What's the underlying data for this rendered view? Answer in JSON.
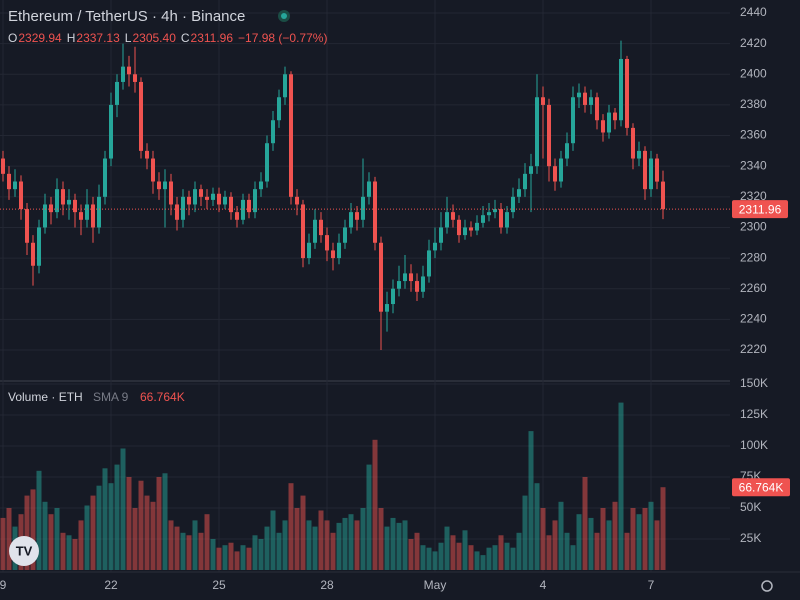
{
  "header": {
    "title": "Ethereum / TetherUS · 4h · Binance",
    "readout": [
      "O",
      "2329.94",
      "H",
      "2337.13",
      "L",
      "2305.40",
      "C",
      "2311.96"
    ],
    "change": "−17.98 (−0.77%)",
    "volume_title": "Volume · ETH",
    "volume_indicator": "SMA 9"
  },
  "chart_data": {
    "type": "candlestick",
    "up_color": "#26a69a",
    "down_color": "#ef5350",
    "categories": [
      "9",
      null,
      null,
      null,
      null,
      null,
      null,
      null,
      null,
      null,
      null,
      null,
      null,
      null,
      null,
      null,
      null,
      null,
      "22",
      null,
      null,
      null,
      null,
      null,
      null,
      null,
      null,
      null,
      null,
      null,
      null,
      null,
      null,
      null,
      null,
      null,
      "25",
      null,
      null,
      null,
      null,
      null,
      null,
      null,
      null,
      null,
      null,
      null,
      null,
      null,
      null,
      null,
      null,
      null,
      "28",
      null,
      null,
      null,
      null,
      null,
      null,
      null,
      null,
      null,
      null,
      null,
      null,
      null,
      null,
      null,
      null,
      null,
      "May",
      null,
      null,
      null,
      null,
      null,
      null,
      null,
      null,
      null,
      null,
      null,
      null,
      null,
      null,
      null,
      null,
      null,
      "4",
      null,
      null,
      null,
      null,
      null,
      null,
      null,
      null,
      null,
      null,
      null,
      null,
      null,
      null,
      null,
      null,
      null,
      "7",
      null,
      null
    ],
    "open": [
      2345,
      2335,
      2325,
      2330,
      2312,
      2290,
      2275,
      2300,
      2315,
      2310,
      2325,
      2315,
      2318,
      2310,
      2305,
      2315,
      2300,
      2320,
      2345,
      2380,
      2395,
      2405,
      2400,
      2395,
      2350,
      2345,
      2330,
      2325,
      2330,
      2315,
      2305,
      2320,
      2315,
      2325,
      2320,
      2318,
      2322,
      2315,
      2320,
      2310,
      2305,
      2318,
      2310,
      2325,
      2330,
      2355,
      2370,
      2385,
      2400,
      2320,
      2315,
      2280,
      2290,
      2305,
      2295,
      2285,
      2280,
      2290,
      2300,
      2310,
      2305,
      2320,
      2330,
      2290,
      2245,
      2250,
      2260,
      2265,
      2270,
      2265,
      2258,
      2268,
      2285,
      2290,
      2300,
      2310,
      2305,
      2295,
      2300,
      2298,
      2303,
      2308,
      2310,
      2312,
      2300,
      2310,
      2320,
      2325,
      2335,
      2340,
      2385,
      2380,
      2340,
      2330,
      2345,
      2355,
      2385,
      2388,
      2380,
      2385,
      2370,
      2362,
      2375,
      2370,
      2410,
      2365,
      2345,
      2350,
      2325,
      2345,
      2329.94
    ],
    "high": [
      2350,
      2340,
      2338,
      2334,
      2316,
      2295,
      2305,
      2322,
      2320,
      2332,
      2330,
      2325,
      2322,
      2315,
      2325,
      2320,
      2328,
      2350,
      2388,
      2400,
      2420,
      2412,
      2418,
      2398,
      2355,
      2350,
      2336,
      2338,
      2335,
      2320,
      2325,
      2324,
      2330,
      2328,
      2325,
      2326,
      2326,
      2324,
      2323,
      2314,
      2322,
      2322,
      2330,
      2336,
      2360,
      2376,
      2390,
      2405,
      2402,
      2325,
      2318,
      2296,
      2312,
      2310,
      2300,
      2290,
      2296,
      2305,
      2316,
      2314,
      2345,
      2336,
      2333,
      2294,
      2258,
      2266,
      2275,
      2282,
      2276,
      2270,
      2275,
      2292,
      2300,
      2310,
      2320,
      2315,
      2308,
      2305,
      2304,
      2308,
      2314,
      2316,
      2318,
      2316,
      2314,
      2326,
      2332,
      2342,
      2348,
      2400,
      2392,
      2384,
      2345,
      2350,
      2362,
      2392,
      2394,
      2392,
      2390,
      2388,
      2374,
      2380,
      2378,
      2422,
      2412,
      2368,
      2356,
      2353,
      2350,
      2348,
      2337.13
    ],
    "low": [
      2330,
      2318,
      2320,
      2305,
      2282,
      2262,
      2270,
      2296,
      2302,
      2306,
      2308,
      2305,
      2300,
      2295,
      2300,
      2290,
      2296,
      2315,
      2340,
      2372,
      2390,
      2392,
      2388,
      2345,
      2338,
      2322,
      2318,
      2300,
      2308,
      2298,
      2300,
      2308,
      2310,
      2314,
      2312,
      2314,
      2310,
      2312,
      2305,
      2300,
      2302,
      2306,
      2306,
      2320,
      2326,
      2350,
      2365,
      2380,
      2315,
      2308,
      2274,
      2276,
      2286,
      2290,
      2278,
      2272,
      2276,
      2286,
      2296,
      2298,
      2300,
      2315,
      2285,
      2220,
      2232,
      2244,
      2255,
      2260,
      2258,
      2252,
      2254,
      2264,
      2280,
      2285,
      2296,
      2300,
      2290,
      2292,
      2294,
      2295,
      2300,
      2304,
      2306,
      2296,
      2296,
      2306,
      2316,
      2320,
      2310,
      2335,
      2345,
      2330,
      2324,
      2326,
      2340,
      2350,
      2378,
      2375,
      2374,
      2364,
      2356,
      2358,
      2364,
      2366,
      2360,
      2338,
      2340,
      2318,
      2320,
      2325,
      2305.4
    ],
    "close": [
      2335,
      2325,
      2330,
      2312,
      2290,
      2275,
      2300,
      2315,
      2310,
      2325,
      2315,
      2318,
      2310,
      2305,
      2315,
      2300,
      2320,
      2345,
      2380,
      2395,
      2405,
      2400,
      2395,
      2350,
      2345,
      2330,
      2325,
      2330,
      2315,
      2305,
      2320,
      2315,
      2325,
      2320,
      2318,
      2322,
      2315,
      2320,
      2310,
      2305,
      2318,
      2310,
      2325,
      2330,
      2355,
      2370,
      2385,
      2400,
      2320,
      2315,
      2280,
      2290,
      2305,
      2295,
      2285,
      2280,
      2290,
      2300,
      2310,
      2305,
      2320,
      2330,
      2290,
      2245,
      2250,
      2260,
      2265,
      2270,
      2265,
      2258,
      2268,
      2285,
      2290,
      2300,
      2310,
      2305,
      2295,
      2300,
      2298,
      2303,
      2308,
      2310,
      2312,
      2300,
      2310,
      2320,
      2325,
      2335,
      2340,
      2385,
      2380,
      2340,
      2330,
      2345,
      2355,
      2385,
      2388,
      2380,
      2385,
      2370,
      2362,
      2375,
      2370,
      2410,
      2365,
      2345,
      2350,
      2325,
      2345,
      2329.94,
      2311.96
    ],
    "volume": [
      42000,
      50000,
      35000,
      45000,
      60000,
      65000,
      80000,
      55000,
      45000,
      50000,
      30000,
      28000,
      25000,
      40000,
      52000,
      60000,
      68000,
      82000,
      70000,
      85000,
      98000,
      75000,
      50000,
      72000,
      60000,
      55000,
      75000,
      78000,
      40000,
      35000,
      30000,
      28000,
      40000,
      30000,
      45000,
      25000,
      18000,
      20000,
      22000,
      15000,
      20000,
      18000,
      28000,
      25000,
      35000,
      48000,
      30000,
      40000,
      70000,
      50000,
      60000,
      40000,
      35000,
      48000,
      40000,
      30000,
      38000,
      42000,
      45000,
      40000,
      50000,
      85000,
      105000,
      50000,
      35000,
      42000,
      38000,
      40000,
      25000,
      30000,
      20000,
      18000,
      15000,
      22000,
      35000,
      28000,
      22000,
      32000,
      20000,
      15000,
      12000,
      18000,
      20000,
      28000,
      22000,
      18000,
      30000,
      60000,
      112000,
      70000,
      50000,
      28000,
      40000,
      55000,
      30000,
      20000,
      45000,
      75000,
      42000,
      30000,
      50000,
      40000,
      55000,
      135000,
      30000,
      50000,
      45000,
      50000,
      55000,
      40000,
      66764
    ],
    "volume_label": "66.764K",
    "ylim": [
      2200.4,
      2448.5
    ],
    "yticks": [
      2220,
      2240,
      2260,
      2280,
      2300,
      2320,
      2340,
      2360,
      2380,
      2400,
      2420,
      2440
    ],
    "y2lim": [
      0,
      150000
    ],
    "y2ticks": [
      {
        "value": 25000,
        "label": "25K"
      },
      {
        "value": 50000,
        "label": "50K"
      },
      {
        "value": 75000,
        "label": "75K"
      },
      {
        "value": 100000,
        "label": "100K"
      },
      {
        "value": 125000,
        "label": "125K"
      },
      {
        "value": 150000,
        "label": "150K"
      }
    ],
    "grid": true
  }
}
